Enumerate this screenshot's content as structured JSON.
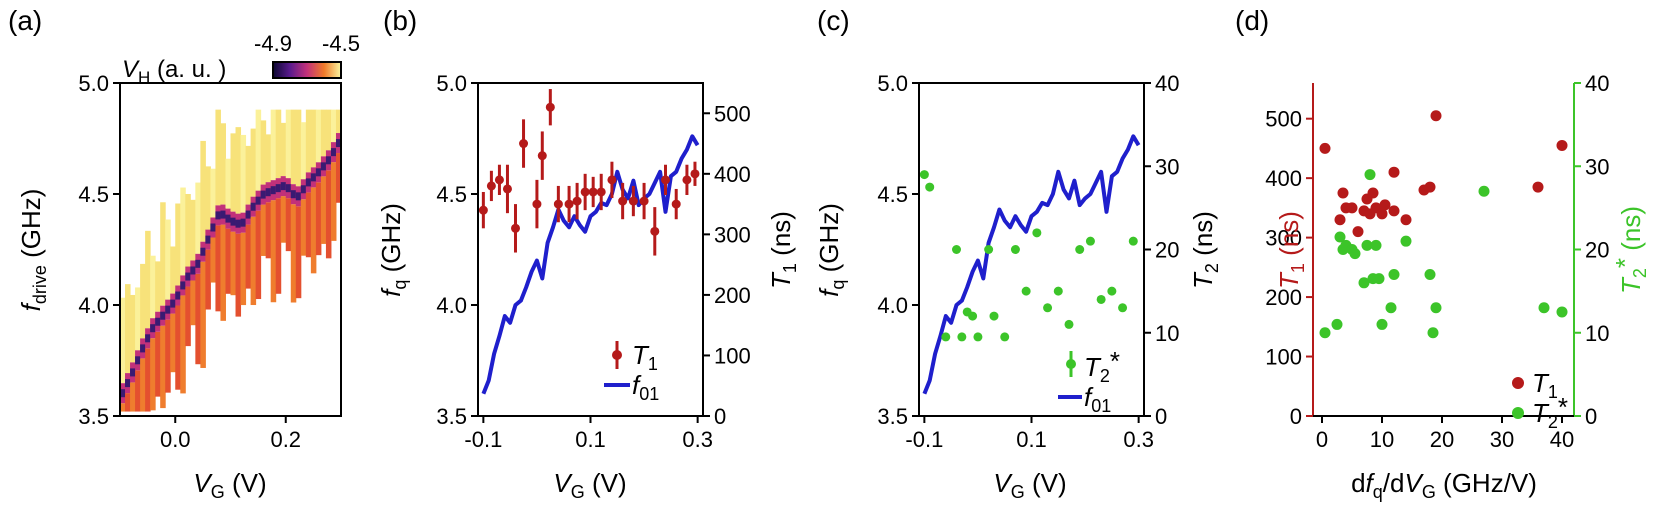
{
  "panels": {
    "a": {
      "label": "(a)"
    },
    "b": {
      "label": "(b)"
    },
    "c": {
      "label": "(c)"
    },
    "d": {
      "label": "(d)"
    }
  },
  "chart_data": [
    {
      "type": "heatmap",
      "panel": "(a)",
      "xlabel": "V_G (V)",
      "ylabel": "f_drive (GHz)",
      "xlim": [
        -0.1,
        0.3
      ],
      "ylim": [
        3.5,
        5.0
      ],
      "xticks": [
        "0.0",
        "0.2"
      ],
      "yticks": [
        "3.5",
        "4.0",
        "4.5",
        "5.0"
      ],
      "colorbar": {
        "label": "V_H (a. u. )",
        "min": -4.9,
        "max": -4.5,
        "ticks": [
          "-4.9",
          "-4.5"
        ]
      },
      "resonance": {
        "x": [
          -0.1,
          -0.08,
          -0.06,
          -0.04,
          -0.02,
          0.0,
          0.02,
          0.04,
          0.06,
          0.08,
          0.1,
          0.12,
          0.14,
          0.16,
          0.18,
          0.2,
          0.22,
          0.24,
          0.26,
          0.28,
          0.3
        ],
        "y": [
          3.58,
          3.68,
          3.8,
          3.9,
          3.96,
          4.02,
          4.12,
          4.18,
          4.3,
          4.42,
          4.38,
          4.36,
          4.44,
          4.5,
          4.52,
          4.54,
          4.48,
          4.55,
          4.6,
          4.66,
          4.75
        ]
      }
    },
    {
      "type": "line",
      "panel": "(b)",
      "xlabel": "V_G (V)",
      "ylabel": "f_q (GHz)",
      "y2label": "T_1 (ns)",
      "xlim": [
        -0.11,
        0.31
      ],
      "ylim": [
        3.5,
        5.0
      ],
      "y2lim": [
        0,
        550
      ],
      "xticks": [
        "-0.1",
        "0.1",
        "0.3"
      ],
      "yticks": [
        "3.5",
        "4.0",
        "4.5",
        "5.0"
      ],
      "y2ticks": [
        "0",
        "100",
        "200",
        "300",
        "400",
        "500"
      ],
      "legend": {
        "position": "lower right",
        "entries": [
          "T_1",
          "f_01"
        ]
      },
      "series": [
        {
          "name": "T_1",
          "axis": "right",
          "color": "#b51a1a",
          "x": [
            -0.1,
            -0.085,
            -0.07,
            -0.055,
            -0.04,
            -0.025,
            0.0,
            0.01,
            0.025,
            0.04,
            0.06,
            0.075,
            0.09,
            0.105,
            0.12,
            0.14,
            0.16,
            0.18,
            0.2,
            0.22,
            0.24,
            0.26,
            0.28,
            0.295
          ],
          "y": [
            340,
            380,
            390,
            375,
            310,
            450,
            350,
            430,
            510,
            350,
            350,
            355,
            370,
            370,
            370,
            390,
            355,
            355,
            355,
            305,
            390,
            350,
            390,
            400
          ],
          "err": [
            30,
            25,
            25,
            40,
            40,
            40,
            40,
            40,
            30,
            30,
            30,
            30,
            30,
            25,
            30,
            30,
            30,
            25,
            30,
            40,
            25,
            25,
            25,
            20
          ]
        },
        {
          "name": "f_01",
          "axis": "left",
          "color": "#1f1fcc",
          "x": [
            -0.1,
            -0.09,
            -0.08,
            -0.07,
            -0.06,
            -0.05,
            -0.04,
            -0.03,
            -0.02,
            -0.01,
            0.0,
            0.01,
            0.02,
            0.03,
            0.04,
            0.05,
            0.06,
            0.07,
            0.08,
            0.09,
            0.1,
            0.11,
            0.12,
            0.13,
            0.14,
            0.15,
            0.16,
            0.17,
            0.18,
            0.19,
            0.2,
            0.21,
            0.22,
            0.23,
            0.24,
            0.25,
            0.26,
            0.27,
            0.28,
            0.29,
            0.3
          ],
          "y": [
            3.6,
            3.66,
            3.78,
            3.86,
            3.95,
            3.92,
            4.0,
            4.02,
            4.08,
            4.15,
            4.2,
            4.12,
            4.28,
            4.35,
            4.43,
            4.38,
            4.35,
            4.4,
            4.36,
            4.33,
            4.4,
            4.42,
            4.46,
            4.45,
            4.5,
            4.6,
            4.52,
            4.48,
            4.56,
            4.45,
            4.48,
            4.5,
            4.55,
            4.6,
            4.42,
            4.58,
            4.6,
            4.66,
            4.7,
            4.76,
            4.72
          ]
        }
      ]
    },
    {
      "type": "line",
      "panel": "(c)",
      "xlabel": "V_G (V)",
      "ylabel": "f_q (GHz)",
      "y2label": "T_2 (ns)",
      "xlim": [
        -0.11,
        0.31
      ],
      "ylim": [
        3.5,
        5.0
      ],
      "y2lim": [
        0,
        40
      ],
      "xticks": [
        "-0.1",
        "0.1",
        "0.3"
      ],
      "yticks": [
        "3.5",
        "4.0",
        "4.5",
        "5.0"
      ],
      "y2ticks": [
        "0",
        "10",
        "20",
        "30",
        "40"
      ],
      "legend": {
        "position": "lower right",
        "entries": [
          "T_2*",
          "f_01"
        ]
      },
      "series": [
        {
          "name": "T_2*",
          "axis": "right",
          "color": "#3cc429",
          "x": [
            -0.1,
            -0.09,
            -0.06,
            -0.04,
            -0.03,
            -0.02,
            -0.01,
            0.0,
            0.02,
            0.03,
            0.05,
            0.07,
            0.09,
            0.11,
            0.13,
            0.15,
            0.17,
            0.19,
            0.21,
            0.23,
            0.25,
            0.27,
            0.29
          ],
          "y": [
            29,
            27.5,
            9.5,
            20,
            9.5,
            12.5,
            12,
            9.5,
            20,
            12,
            9.5,
            20,
            15,
            22,
            13,
            15,
            11,
            20,
            21,
            14,
            15,
            13,
            21
          ]
        },
        {
          "name": "f_01",
          "axis": "left",
          "color": "#1f1fcc",
          "x": [
            -0.1,
            -0.09,
            -0.08,
            -0.07,
            -0.06,
            -0.05,
            -0.04,
            -0.03,
            -0.02,
            -0.01,
            0.0,
            0.01,
            0.02,
            0.03,
            0.04,
            0.05,
            0.06,
            0.07,
            0.08,
            0.09,
            0.1,
            0.11,
            0.12,
            0.13,
            0.14,
            0.15,
            0.16,
            0.17,
            0.18,
            0.19,
            0.2,
            0.21,
            0.22,
            0.23,
            0.24,
            0.25,
            0.26,
            0.27,
            0.28,
            0.29,
            0.3
          ],
          "y": [
            3.6,
            3.66,
            3.78,
            3.86,
            3.95,
            3.92,
            4.0,
            4.02,
            4.08,
            4.15,
            4.2,
            4.12,
            4.28,
            4.35,
            4.43,
            4.38,
            4.35,
            4.4,
            4.36,
            4.33,
            4.4,
            4.42,
            4.46,
            4.45,
            4.5,
            4.6,
            4.52,
            4.48,
            4.56,
            4.45,
            4.48,
            4.5,
            4.55,
            4.6,
            4.42,
            4.58,
            4.6,
            4.66,
            4.7,
            4.76,
            4.72
          ]
        }
      ]
    },
    {
      "type": "scatter",
      "panel": "(d)",
      "xlabel": "df_q/dV_G (GHz/V)",
      "ylabel": "T_1 (ns)",
      "y2label": "T_2* (ns)",
      "xlim": [
        -1.5,
        42
      ],
      "ylim": [
        0,
        560
      ],
      "y2lim": [
        0,
        40
      ],
      "xticks": [
        "0",
        "10",
        "20",
        "30",
        "40"
      ],
      "yticks": [
        "0",
        "100",
        "200",
        "300",
        "400",
        "500"
      ],
      "y2ticks": [
        "0",
        "10",
        "20",
        "30",
        "40"
      ],
      "left_axis_color": "#b51a1a",
      "right_axis_color": "#3cc429",
      "legend": {
        "position": "lower right",
        "entries": [
          "T_1",
          "T_2*"
        ]
      },
      "series": [
        {
          "name": "T_1",
          "axis": "left",
          "color": "#b51a1a",
          "x": [
            0.5,
            3,
            3.5,
            4,
            5,
            6,
            7,
            7.5,
            8,
            8.5,
            9,
            10,
            10.5,
            12,
            12,
            14,
            17,
            18,
            19,
            36,
            40
          ],
          "y": [
            450,
            330,
            375,
            350,
            350,
            310,
            345,
            365,
            340,
            375,
            350,
            340,
            355,
            410,
            345,
            330,
            380,
            385,
            505,
            385,
            455
          ]
        },
        {
          "name": "T_2*",
          "axis": "right",
          "color": "#3cc429",
          "x": [
            0.5,
            2.5,
            3,
            3.5,
            4,
            5,
            5.5,
            7,
            7.5,
            8,
            8.5,
            9,
            9.5,
            10,
            11.5,
            12,
            14,
            18,
            18.5,
            19,
            27,
            37,
            40
          ],
          "y": [
            10,
            11,
            21.5,
            20,
            20.5,
            20,
            19.5,
            16,
            20.5,
            29,
            16.5,
            20.5,
            16.5,
            11,
            13,
            17,
            21,
            17,
            10,
            13,
            27,
            13,
            12.5
          ]
        }
      ]
    }
  ]
}
